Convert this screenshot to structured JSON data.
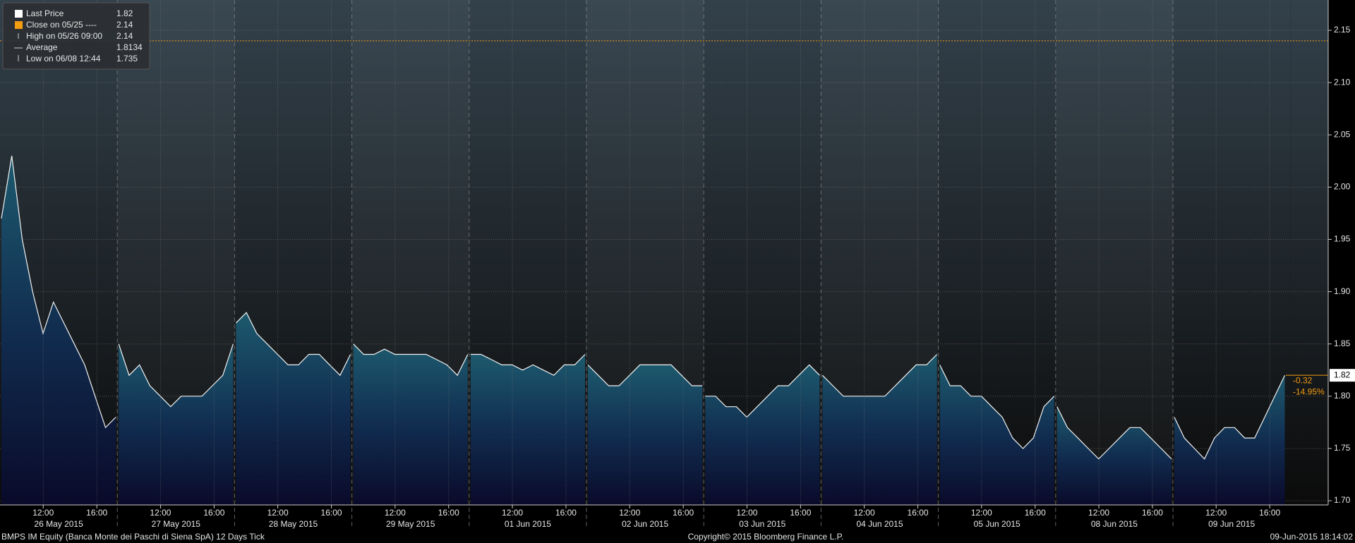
{
  "chart_data": {
    "type": "area",
    "legend": [
      {
        "label": "Last Price",
        "value": "1.82"
      },
      {
        "label": "Close on 05/25 ----",
        "value": "2.14"
      },
      {
        "label": "High on 05/26 09:00",
        "value": "2.14"
      },
      {
        "label": "Average",
        "value": "1.8134"
      },
      {
        "label": "Low on 06/08 12:44",
        "value": "1.735"
      }
    ],
    "close_line": 2.14,
    "last_price": {
      "label": "1.82",
      "change": "-0.32",
      "change_pct": "-14.95%"
    },
    "days": [
      {
        "label": "26 May 2015",
        "times": [
          "12:00",
          "16:00"
        ],
        "values": [
          1.97,
          2.03,
          1.95,
          1.9,
          1.86,
          1.89,
          1.87,
          1.85,
          1.83,
          1.8,
          1.77,
          1.78
        ]
      },
      {
        "label": "27 May 2015",
        "times": [
          "12:00",
          "16:00"
        ],
        "values": [
          1.85,
          1.82,
          1.83,
          1.81,
          1.8,
          1.79,
          1.8,
          1.8,
          1.8,
          1.81,
          1.82,
          1.85
        ]
      },
      {
        "label": "28 May 2015",
        "times": [
          "12:00",
          "16:00"
        ],
        "values": [
          1.87,
          1.88,
          1.86,
          1.85,
          1.84,
          1.83,
          1.83,
          1.84,
          1.84,
          1.83,
          1.82,
          1.84
        ]
      },
      {
        "label": "29 May 2015",
        "times": [
          "12:00",
          "16:00"
        ],
        "values": [
          1.85,
          1.84,
          1.84,
          1.845,
          1.84,
          1.84,
          1.84,
          1.84,
          1.835,
          1.83,
          1.82,
          1.84
        ]
      },
      {
        "label": "01 Jun 2015",
        "times": [
          "12:00",
          "16:00"
        ],
        "values": [
          1.84,
          1.84,
          1.835,
          1.83,
          1.83,
          1.825,
          1.83,
          1.825,
          1.82,
          1.83,
          1.83,
          1.84
        ]
      },
      {
        "label": "02 Jun 2015",
        "times": [
          "12:00",
          "16:00"
        ],
        "values": [
          1.83,
          1.82,
          1.81,
          1.81,
          1.82,
          1.83,
          1.83,
          1.83,
          1.83,
          1.82,
          1.81,
          1.81
        ]
      },
      {
        "label": "03 Jun 2015",
        "times": [
          "12:00",
          "16:00"
        ],
        "values": [
          1.8,
          1.8,
          1.79,
          1.79,
          1.78,
          1.79,
          1.8,
          1.81,
          1.81,
          1.82,
          1.83,
          1.82
        ]
      },
      {
        "label": "04 Jun 2015",
        "times": [
          "12:00",
          "16:00"
        ],
        "values": [
          1.82,
          1.81,
          1.8,
          1.8,
          1.8,
          1.8,
          1.8,
          1.81,
          1.82,
          1.83,
          1.83,
          1.84
        ]
      },
      {
        "label": "05 Jun 2015",
        "times": [
          "12:00",
          "16:00"
        ],
        "values": [
          1.83,
          1.81,
          1.81,
          1.8,
          1.8,
          1.79,
          1.78,
          1.76,
          1.75,
          1.76,
          1.79,
          1.8
        ]
      },
      {
        "label": "08 Jun 2015",
        "times": [
          "12:00",
          "16:00"
        ],
        "values": [
          1.79,
          1.77,
          1.76,
          1.75,
          1.74,
          1.75,
          1.76,
          1.77,
          1.77,
          1.76,
          1.75,
          1.74
        ]
      },
      {
        "label": "09 Jun 2015",
        "times": [
          "12:00",
          "16:00"
        ],
        "values": [
          1.78,
          1.76,
          1.75,
          1.74,
          1.76,
          1.77,
          1.77,
          1.76,
          1.76,
          1.78,
          1.8,
          1.82
        ]
      }
    ],
    "ylim": [
      1.696,
      2.179
    ],
    "yticks": [
      {
        "value": 1.7,
        "label": "1.70"
      },
      1.75,
      {
        "value": 1.8,
        "label": "1.80"
      },
      1.85,
      {
        "value": 1.9,
        "label": "1.90"
      },
      1.95,
      {
        "value": 2.0,
        "label": "2.00"
      },
      2.05,
      {
        "value": 2.1,
        "label": "2.10"
      },
      2.15
    ],
    "footer": {
      "left": "BMPS IM Equity (Banca Monte dei Paschi di Siena SpA) 12 Days  Tick",
      "center": "Copyright© 2015 Bloomberg Finance L.P.",
      "right": "09-Jun-2015 18:14:02"
    }
  }
}
